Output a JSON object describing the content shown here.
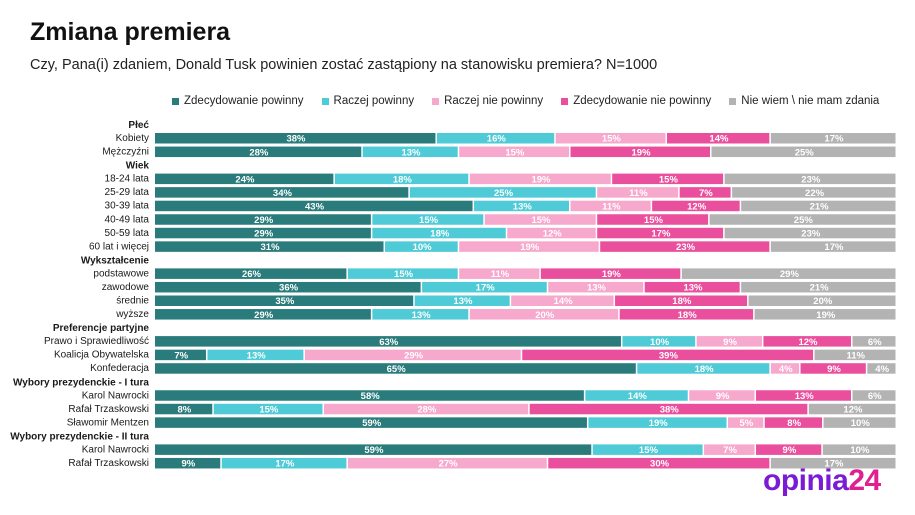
{
  "chart_data": {
    "type": "bar",
    "stacked": true,
    "orientation": "horizontal",
    "title": "Zmiana premiera",
    "subtitle": "Czy, Pana(i) zdaniem, Donald Tusk powinien zostać zastąpiony na stanowisku premiera? N=1000",
    "xlim": [
      0,
      100
    ],
    "value_unit": "%",
    "legend_position": "top",
    "series": [
      {
        "name": "Zdecydowanie powinny",
        "color": "#2a7b7b"
      },
      {
        "name": "Raczej powinny",
        "color": "#4ecbd6"
      },
      {
        "name": "Raczej nie powinny",
        "color": "#f7a8cd"
      },
      {
        "name": "Zdecydowanie nie powinny",
        "color": "#ea4f9d"
      },
      {
        "name": "Nie wiem \\ nie mam zdania",
        "color": "#b3b3b3"
      }
    ],
    "groups": [
      {
        "label": "Płeć",
        "rows": [
          {
            "label": "Kobiety",
            "values": [
              38,
              16,
              15,
              14,
              17
            ]
          },
          {
            "label": "Mężczyźni",
            "values": [
              28,
              13,
              15,
              19,
              25
            ]
          }
        ]
      },
      {
        "label": "Wiek",
        "rows": [
          {
            "label": "18-24 lata",
            "values": [
              24,
              18,
              19,
              15,
              23
            ]
          },
          {
            "label": "25-29 lata",
            "values": [
              34,
              25,
              11,
              7,
              22
            ]
          },
          {
            "label": "30-39 lata",
            "values": [
              43,
              13,
              11,
              12,
              21
            ]
          },
          {
            "label": "40-49 lata",
            "values": [
              29,
              15,
              15,
              15,
              25
            ]
          },
          {
            "label": "50-59 lata",
            "values": [
              29,
              18,
              12,
              17,
              23
            ]
          },
          {
            "label": "60 lat i więcej",
            "values": [
              31,
              10,
              19,
              23,
              17
            ]
          }
        ]
      },
      {
        "label": "Wykształcenie",
        "rows": [
          {
            "label": "podstawowe",
            "values": [
              26,
              15,
              11,
              19,
              29
            ]
          },
          {
            "label": "zawodowe",
            "values": [
              36,
              17,
              13,
              13,
              21
            ]
          },
          {
            "label": "średnie",
            "values": [
              35,
              13,
              14,
              18,
              20
            ]
          },
          {
            "label": "wyższe",
            "values": [
              29,
              13,
              20,
              18,
              19
            ]
          }
        ]
      },
      {
        "label": "Preferencje partyjne",
        "rows": [
          {
            "label": "Prawo i Sprawiedliwość",
            "values": [
              63,
              10,
              9,
              12,
              6
            ]
          },
          {
            "label": "Koalicja Obywatelska",
            "values": [
              7,
              13,
              29,
              39,
              11
            ]
          },
          {
            "label": "Konfederacja",
            "values": [
              65,
              18,
              4,
              9,
              4
            ]
          }
        ]
      },
      {
        "label": "Wybory prezydenckie - I tura",
        "rows": [
          {
            "label": "Karol Nawrocki",
            "values": [
              58,
              14,
              9,
              13,
              6
            ]
          },
          {
            "label": "Rafał Trzaskowski",
            "values": [
              8,
              15,
              28,
              38,
              12
            ]
          },
          {
            "label": "Sławomir Mentzen",
            "values": [
              59,
              19,
              5,
              8,
              10
            ]
          }
        ]
      },
      {
        "label": "Wybory prezydenckie - II tura",
        "rows": [
          {
            "label": "Karol Nawrocki",
            "values": [
              59,
              15,
              7,
              9,
              10
            ]
          },
          {
            "label": "Rafał Trzaskowski",
            "values": [
              9,
              17,
              27,
              30,
              17
            ]
          }
        ]
      }
    ]
  },
  "brand": {
    "logo_word": "opinia",
    "logo_number": "24",
    "color_word": "#7a1bd6",
    "color_number": "#e0208f"
  }
}
